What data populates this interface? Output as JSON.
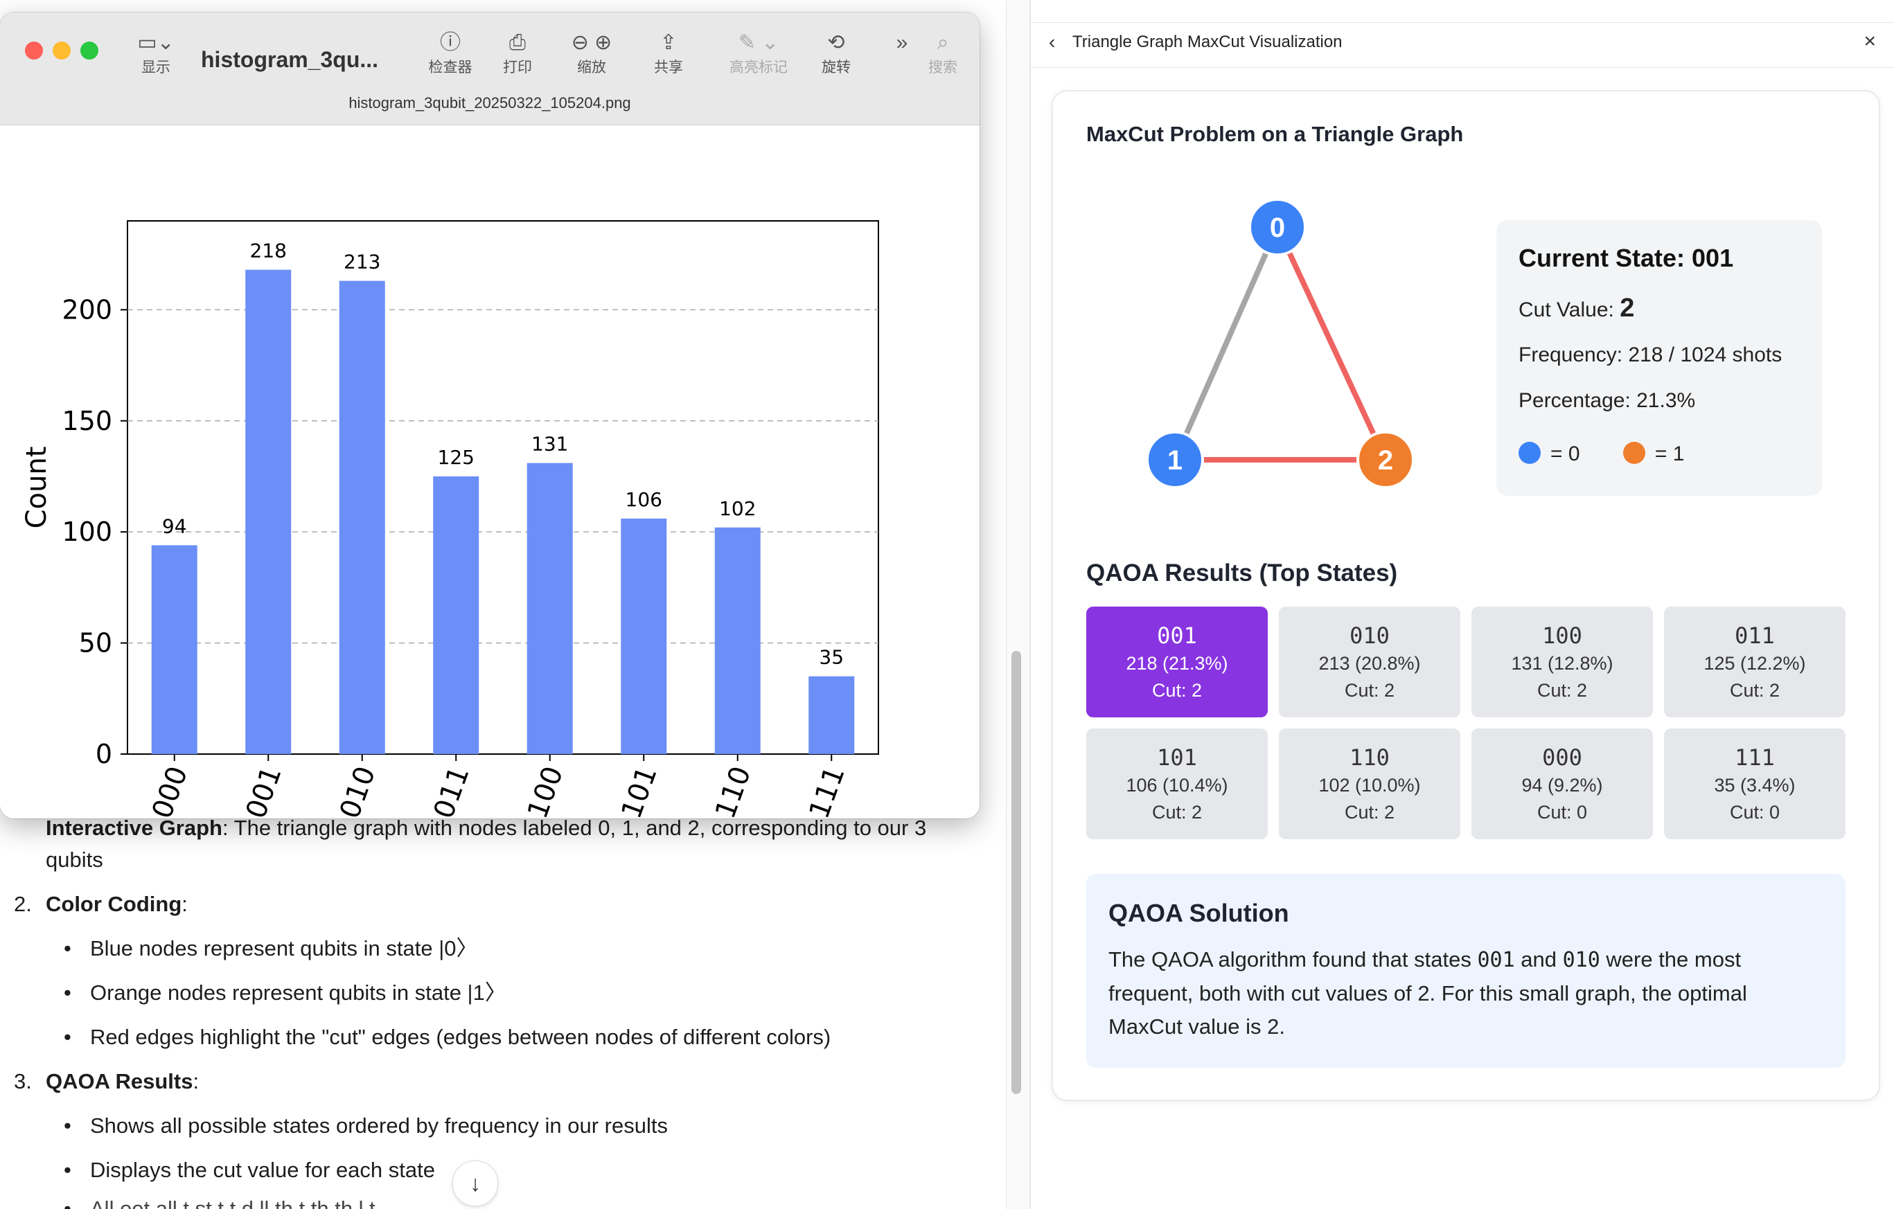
{
  "preview": {
    "toolbar": {
      "sidebar_label": "显示",
      "doc_title": "histogram_3qu...",
      "inspector_label": "检查器",
      "print_label": "打印",
      "zoom_label": "缩放",
      "share_label": "共享",
      "highlight_label": "高亮标记",
      "rotate_label": "旋转",
      "search_label": "搜索"
    },
    "file_name": "histogram_3qubit_20250322_105204.png"
  },
  "chart_data": {
    "type": "bar",
    "categories": [
      "000",
      "001",
      "010",
      "011",
      "100",
      "101",
      "110",
      "111"
    ],
    "values": [
      94,
      218,
      213,
      125,
      131,
      106,
      102,
      35
    ],
    "ylabel": "Count",
    "ylim": [
      0,
      240
    ],
    "yticks": [
      0,
      50,
      100,
      150,
      200
    ],
    "grid": true,
    "bar_color": "#6b8ff6"
  },
  "left_doc": {
    "interactive_bold": "Interactive Graph",
    "interactive_text": ": The triangle graph with nodes labeled 0, 1, and 2, corresponding to our 3",
    "interactive_text2": "qubits",
    "item2_num": "2.",
    "item2_title": "Color Coding",
    "item2_colon": ":",
    "bullet_blue": "Blue nodes represent qubits in state |0〉",
    "bullet_orange": "Orange nodes represent qubits in state |1〉",
    "bullet_red": "Red edges highlight the \"cut\" edges (edges between nodes of different colors)",
    "item3_num": "3.",
    "item3_title": "QAOA Results",
    "item3_colon": ":",
    "bullet_states": "Shows all possible states ordered by frequency in our results",
    "bullet_cut": "Displays the cut value for each state",
    "bullet_partial": "All              eet all         t   st t  t    d    ll    th t  th    th    l    t"
  },
  "artifact": {
    "title": "Triangle Graph MaxCut Visualization",
    "heading": "MaxCut Problem on a Triangle Graph",
    "nodes": [
      {
        "label": "0",
        "color": "#3b82f6"
      },
      {
        "label": "1",
        "color": "#3b82f6"
      },
      {
        "label": "2",
        "color": "#f07d2b"
      }
    ],
    "edge_cut_color": "#ef6461",
    "edge_uncut_color": "#a6a6a6",
    "state": {
      "title": "Current State: 001",
      "cut_label": "Cut Value: ",
      "cut_value": "2",
      "frequency": "Frequency: 218 / 1024 shots",
      "percentage": "Percentage: 21.3%",
      "legend_zero": "= 0",
      "legend_one": "= 1"
    },
    "results_heading": "QAOA Results (Top States)",
    "results": [
      {
        "bits": "001",
        "count": "218 (21.3%)",
        "cut": "Cut: 2"
      },
      {
        "bits": "010",
        "count": "213 (20.8%)",
        "cut": "Cut: 2"
      },
      {
        "bits": "100",
        "count": "131 (12.8%)",
        "cut": "Cut: 2"
      },
      {
        "bits": "011",
        "count": "125 (12.2%)",
        "cut": "Cut: 2"
      },
      {
        "bits": "101",
        "count": "106 (10.4%)",
        "cut": "Cut: 2"
      },
      {
        "bits": "110",
        "count": "102 (10.0%)",
        "cut": "Cut: 2"
      },
      {
        "bits": "000",
        "count": "94 (9.2%)",
        "cut": "Cut: 0"
      },
      {
        "bits": "111",
        "count": "35 (3.4%)",
        "cut": "Cut: 0"
      }
    ],
    "selected_color": "#8834e1",
    "solution": {
      "title": "QAOA Solution",
      "t1": "The QAOA algorithm found that states ",
      "s1": "001",
      "t2": " and ",
      "s2": "010",
      "t3": " were the most frequent, both with cut values of 2. For this small graph, the optimal MaxCut value is 2."
    }
  }
}
